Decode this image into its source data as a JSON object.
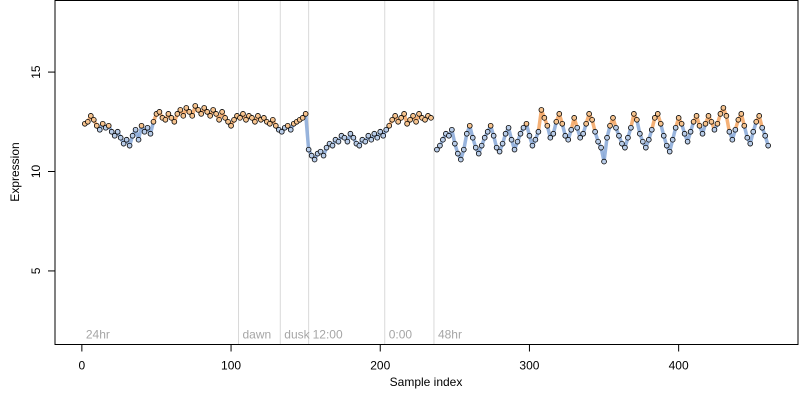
{
  "chart_data": {
    "type": "scatter",
    "xlabel": "Sample index",
    "ylabel": "Expression",
    "xlim": [
      -18,
      480
    ],
    "ylim": [
      1.3,
      18.6
    ],
    "x_ticks": [
      0,
      100,
      200,
      300,
      400
    ],
    "y_ticks": [
      5,
      10,
      15
    ],
    "grid": false,
    "regions": [
      {
        "label": "24hr",
        "start": 0
      },
      {
        "label": "dawn",
        "start": 105
      },
      {
        "label": "dusk",
        "start": 133
      },
      {
        "label": "12:00",
        "start": 152
      },
      {
        "label": "0:00",
        "start": 203
      },
      {
        "label": "48hr",
        "start": 236
      }
    ],
    "colors": {
      "light_period": "#f4a460",
      "dark_period": "#87a8d8",
      "divider": "#d9d9d9",
      "region_label": "#a6a6a6",
      "point_edge": "#000000"
    },
    "series": [
      {
        "points": [
          [
            2,
            12.4
          ],
          [
            4,
            12.5
          ],
          [
            6,
            12.8
          ],
          [
            8,
            12.6
          ],
          [
            10,
            12.3
          ],
          [
            12,
            12.1
          ],
          [
            14,
            12.4
          ],
          [
            16,
            12.2
          ],
          [
            18,
            12.3
          ],
          [
            20,
            12.0
          ],
          [
            22,
            11.8
          ],
          [
            24,
            12.0
          ],
          [
            26,
            11.7
          ],
          [
            28,
            11.4
          ],
          [
            30,
            11.6
          ],
          [
            32,
            11.3
          ],
          [
            34,
            11.8
          ],
          [
            36,
            12.1
          ],
          [
            38,
            11.6
          ],
          [
            40,
            12.3
          ],
          [
            42,
            12.0
          ],
          [
            44,
            12.2
          ],
          [
            46,
            11.9
          ],
          [
            48,
            12.5
          ],
          [
            50,
            12.9
          ],
          [
            52,
            13.0
          ],
          [
            54,
            12.7
          ],
          [
            56,
            12.6
          ],
          [
            58,
            12.9
          ],
          [
            60,
            12.7
          ],
          [
            62,
            12.5
          ],
          [
            64,
            12.9
          ],
          [
            66,
            13.1
          ],
          [
            68,
            12.8
          ],
          [
            70,
            13.2
          ],
          [
            72,
            13.0
          ],
          [
            74,
            12.8
          ],
          [
            76,
            13.3
          ],
          [
            78,
            13.1
          ],
          [
            80,
            12.9
          ],
          [
            82,
            13.2
          ],
          [
            84,
            13.0
          ],
          [
            86,
            12.8
          ],
          [
            88,
            13.1
          ],
          [
            90,
            12.9
          ],
          [
            92,
            12.6
          ],
          [
            94,
            13.0
          ],
          [
            96,
            12.7
          ],
          [
            98,
            12.5
          ],
          [
            100,
            12.3
          ],
          [
            102,
            12.6
          ],
          [
            104,
            12.8
          ],
          [
            106,
            12.7
          ],
          [
            108,
            12.9
          ],
          [
            110,
            12.6
          ],
          [
            112,
            12.8
          ],
          [
            114,
            12.7
          ],
          [
            116,
            12.5
          ],
          [
            118,
            12.8
          ],
          [
            120,
            12.6
          ],
          [
            122,
            12.7
          ],
          [
            124,
            12.5
          ],
          [
            126,
            12.4
          ],
          [
            128,
            12.6
          ],
          [
            130,
            12.3
          ],
          [
            132,
            12.1
          ],
          [
            134,
            12.0
          ],
          [
            136,
            12.2
          ],
          [
            138,
            12.3
          ],
          [
            140,
            12.1
          ],
          [
            142,
            12.4
          ],
          [
            144,
            12.5
          ],
          [
            146,
            12.6
          ],
          [
            148,
            12.7
          ],
          [
            150,
            12.9
          ],
          [
            152,
            11.1
          ],
          [
            154,
            10.8
          ],
          [
            156,
            10.6
          ],
          [
            158,
            10.9
          ],
          [
            160,
            11.0
          ],
          [
            162,
            10.8
          ],
          [
            164,
            11.2
          ],
          [
            166,
            11.4
          ],
          [
            168,
            11.3
          ],
          [
            170,
            11.6
          ],
          [
            172,
            11.5
          ],
          [
            174,
            11.8
          ],
          [
            176,
            11.7
          ],
          [
            178,
            11.5
          ],
          [
            180,
            11.9
          ],
          [
            182,
            11.7
          ],
          [
            184,
            11.4
          ],
          [
            186,
            11.3
          ],
          [
            188,
            11.6
          ],
          [
            190,
            11.5
          ],
          [
            192,
            11.8
          ],
          [
            194,
            11.6
          ],
          [
            196,
            11.9
          ],
          [
            198,
            11.7
          ],
          [
            200,
            12.0
          ],
          [
            202,
            11.8
          ],
          [
            204,
            12.1
          ],
          [
            206,
            12.3
          ],
          [
            208,
            12.6
          ],
          [
            210,
            12.8
          ],
          [
            212,
            12.5
          ],
          [
            214,
            12.7
          ],
          [
            216,
            12.9
          ],
          [
            218,
            12.4
          ],
          [
            220,
            12.6
          ],
          [
            222,
            12.8
          ],
          [
            224,
            12.5
          ],
          [
            226,
            12.9
          ],
          [
            228,
            12.7
          ],
          [
            230,
            12.6
          ],
          [
            232,
            12.8
          ],
          [
            234,
            12.7
          ],
          [
            238,
            11.1
          ],
          [
            240,
            11.3
          ],
          [
            242,
            11.6
          ],
          [
            244,
            11.9
          ],
          [
            246,
            11.8
          ],
          [
            248,
            12.1
          ],
          [
            250,
            11.4
          ],
          [
            252,
            10.9
          ],
          [
            254,
            10.6
          ],
          [
            256,
            11.1
          ],
          [
            258,
            11.9
          ],
          [
            260,
            12.3
          ],
          [
            262,
            11.7
          ],
          [
            264,
            11.2
          ],
          [
            266,
            10.9
          ],
          [
            268,
            11.3
          ],
          [
            270,
            11.7
          ],
          [
            272,
            12.0
          ],
          [
            274,
            12.3
          ],
          [
            276,
            11.8
          ],
          [
            278,
            11.2
          ],
          [
            280,
            11.0
          ],
          [
            282,
            11.4
          ],
          [
            284,
            11.9
          ],
          [
            286,
            12.2
          ],
          [
            288,
            11.6
          ],
          [
            290,
            11.1
          ],
          [
            292,
            11.5
          ],
          [
            294,
            11.9
          ],
          [
            296,
            12.2
          ],
          [
            298,
            12.4
          ],
          [
            300,
            11.8
          ],
          [
            302,
            11.3
          ],
          [
            304,
            11.6
          ],
          [
            306,
            12.0
          ],
          [
            308,
            13.1
          ],
          [
            310,
            12.7
          ],
          [
            312,
            12.3
          ],
          [
            314,
            11.7
          ],
          [
            316,
            11.9
          ],
          [
            318,
            12.5
          ],
          [
            320,
            12.9
          ],
          [
            322,
            12.4
          ],
          [
            324,
            11.8
          ],
          [
            326,
            11.6
          ],
          [
            328,
            12.1
          ],
          [
            330,
            12.7
          ],
          [
            332,
            12.2
          ],
          [
            334,
            11.7
          ],
          [
            336,
            11.9
          ],
          [
            338,
            12.4
          ],
          [
            340,
            12.9
          ],
          [
            342,
            12.6
          ],
          [
            344,
            12.0
          ],
          [
            346,
            11.5
          ],
          [
            348,
            11.2
          ],
          [
            350,
            10.5
          ],
          [
            352,
            11.7
          ],
          [
            354,
            12.3
          ],
          [
            356,
            12.7
          ],
          [
            358,
            12.2
          ],
          [
            360,
            11.8
          ],
          [
            362,
            11.4
          ],
          [
            364,
            11.2
          ],
          [
            366,
            11.7
          ],
          [
            368,
            12.2
          ],
          [
            370,
            12.9
          ],
          [
            372,
            12.6
          ],
          [
            374,
            11.9
          ],
          [
            376,
            11.5
          ],
          [
            378,
            11.2
          ],
          [
            380,
            11.6
          ],
          [
            382,
            12.1
          ],
          [
            384,
            12.7
          ],
          [
            386,
            12.9
          ],
          [
            388,
            12.4
          ],
          [
            390,
            11.8
          ],
          [
            392,
            11.3
          ],
          [
            394,
            11.0
          ],
          [
            396,
            11.6
          ],
          [
            398,
            12.2
          ],
          [
            400,
            12.7
          ],
          [
            402,
            12.4
          ],
          [
            404,
            11.9
          ],
          [
            406,
            11.5
          ],
          [
            408,
            12.0
          ],
          [
            410,
            12.5
          ],
          [
            412,
            12.8
          ],
          [
            414,
            12.3
          ],
          [
            416,
            11.9
          ],
          [
            418,
            12.4
          ],
          [
            420,
            12.8
          ],
          [
            422,
            12.5
          ],
          [
            424,
            12.1
          ],
          [
            426,
            12.4
          ],
          [
            428,
            12.9
          ],
          [
            430,
            13.2
          ],
          [
            432,
            12.8
          ],
          [
            434,
            12.0
          ],
          [
            436,
            11.6
          ],
          [
            438,
            12.1
          ],
          [
            440,
            12.6
          ],
          [
            442,
            12.9
          ],
          [
            444,
            12.3
          ],
          [
            446,
            11.7
          ],
          [
            448,
            11.4
          ],
          [
            450,
            12.0
          ],
          [
            452,
            12.5
          ],
          [
            454,
            12.8
          ],
          [
            456,
            12.2
          ],
          [
            458,
            11.8
          ],
          [
            460,
            11.3
          ]
        ]
      }
    ]
  }
}
